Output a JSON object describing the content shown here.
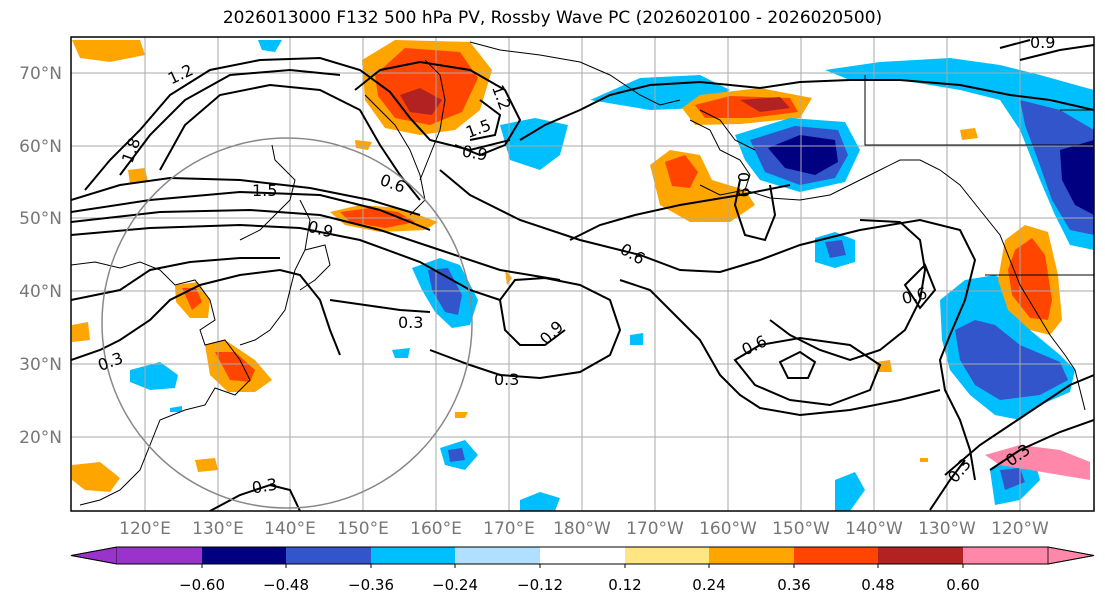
{
  "title": "2026013000 F132 500 hPa PV, Rossby Wave PC (2026020100 - 2026020500)",
  "lat_labels": [
    "70°N",
    "60°N",
    "50°N",
    "40°N",
    "30°N",
    "20°N"
  ],
  "lon_labels": [
    "120°E",
    "130°E",
    "140°E",
    "150°E",
    "160°E",
    "170°E",
    "180°W",
    "170°W",
    "160°W",
    "150°W",
    "140°W",
    "130°W",
    "120°W"
  ],
  "colorbar": {
    "ticks": [
      "−0.60",
      "−0.48",
      "−0.36",
      "−0.24",
      "−0.12",
      "0.12",
      "0.24",
      "0.36",
      "0.48",
      "0.60"
    ],
    "colors": [
      "#9933cc",
      "#000080",
      "#3355cc",
      "#00bfff",
      "#b0e0ff",
      "#ffffff",
      "#ffe680",
      "#ffa500",
      "#ff4500",
      "#b22222",
      "#ff88aa"
    ]
  },
  "contour_labels": [
    "1.2",
    "1.8",
    "1.5",
    "0.6",
    "0.9",
    "1.2",
    "1.5",
    "0.9",
    "0.9",
    "0.6",
    "0.3",
    "0.9",
    "0.3",
    "0.3",
    "0.6",
    "0.6",
    "0.3",
    "0.3",
    "0.3",
    "0.9"
  ]
}
